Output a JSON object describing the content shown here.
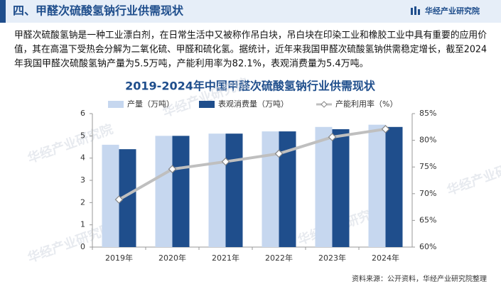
{
  "header": {
    "title": "四、甲醛次硫酸氢钠行业供需现状",
    "brand": "华经产业研究院"
  },
  "paragraph": [
    "甲醛次硫酸氢钠是一种工业漂白剂，在日常生活中又被称作吊白块，吊白块在印染工业和橡胶工业中具有重要的应用价",
    "值，其在高温下受热会分解为二氧化硫、甲醛和硫化氢。据统计，近年来我国甲醛次硫酸氢钠供需稳定增长，截至2024",
    "年我国甲醛次硫酸氢钠产量为5.5万吨，产能利用率为82.1%，表观消费量为5.4万吨。"
  ],
  "watermark": "华经产业研究院",
  "source": "资料来源：公开资料，华经产业研究院整理",
  "chart_data": {
    "type": "bar",
    "title": "2019-2024年中国甲醛次硫酸氢钠行业供需现状",
    "categories": [
      "2019年",
      "2020年",
      "2021年",
      "2022年",
      "2023年",
      "2024年"
    ],
    "series": [
      {
        "name": "产量（万吨）",
        "color": "#c6d7ef",
        "values": [
          4.6,
          5.0,
          5.1,
          5.2,
          5.4,
          5.5
        ]
      },
      {
        "name": "表观消费量（万吨）",
        "color": "#1f4e8c",
        "values": [
          4.4,
          5.0,
          5.1,
          5.2,
          5.3,
          5.4
        ]
      },
      {
        "name": "产能利用率（%）",
        "color": "#bfbfbf",
        "type": "line",
        "axis": "y2",
        "values": [
          68.9,
          74.6,
          76.0,
          77.5,
          80.6,
          82.1
        ]
      }
    ],
    "ylim": [
      0,
      6
    ],
    "yticks": [
      0,
      1,
      2,
      3,
      4,
      5,
      6
    ],
    "y2lim": [
      60,
      85
    ],
    "y2ticks": [
      {
        "value": 60,
        "label": "60%"
      },
      {
        "value": 65,
        "label": "65%"
      },
      {
        "value": 70,
        "label": "70%"
      },
      {
        "value": 75,
        "label": "75%"
      },
      {
        "value": 80,
        "label": "80%"
      },
      {
        "value": 85,
        "label": "85%"
      }
    ],
    "legend": "top"
  }
}
